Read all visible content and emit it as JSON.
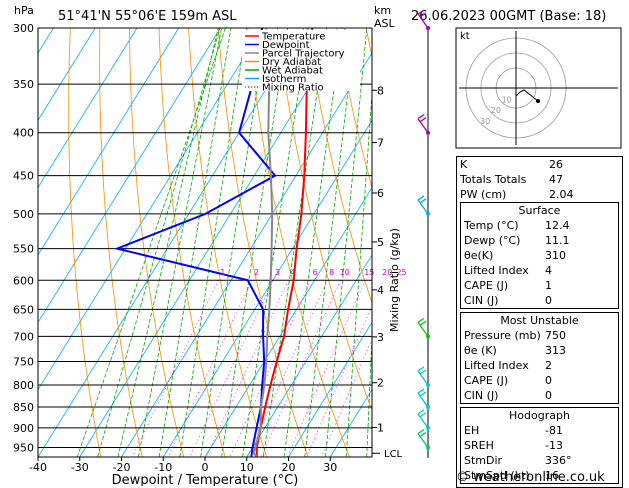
{
  "header": {
    "location": "51°41'N  55°06'E  159m  ASL",
    "datetime": "26.06.2023  00GMT  (Base: 18)",
    "hpa_label": "hPa",
    "km_label": "km",
    "asl_label": "ASL"
  },
  "legend": {
    "items": [
      {
        "label": "Temperature",
        "color": "#ff0000",
        "style": "solid"
      },
      {
        "label": "Dewpoint",
        "color": "#0000ff",
        "style": "solid"
      },
      {
        "label": "Parcel Trajectory",
        "color": "#888888",
        "style": "solid"
      },
      {
        "label": "Dry Adiabat",
        "color": "#ff8c00",
        "style": "solid"
      },
      {
        "label": "Wet Adiabat",
        "color": "#00aa00",
        "style": "solid"
      },
      {
        "label": "Isotherm",
        "color": "#00aaff",
        "style": "solid"
      },
      {
        "label": "Mixing Ratio",
        "color": "#ff00ff",
        "style": "dotted"
      }
    ]
  },
  "chart_data": {
    "type": "line",
    "title": "",
    "xlabel": "Dewpoint / Temperature (°C)",
    "ylabel": "hPa",
    "y2label": "Mixing Ratio (g/kg)",
    "xlim": [
      -40,
      40
    ],
    "x_ticks": [
      -40,
      -30,
      -20,
      -10,
      0,
      10,
      20,
      30
    ],
    "pressure_levels": [
      300,
      350,
      400,
      450,
      500,
      550,
      600,
      650,
      700,
      750,
      800,
      850,
      900,
      950
    ],
    "km_ticks": [
      {
        "label": "8",
        "p": 356
      },
      {
        "label": "7",
        "p": 411
      },
      {
        "label": "6",
        "p": 472
      },
      {
        "label": "5",
        "p": 540
      },
      {
        "label": "4",
        "p": 616
      },
      {
        "label": "3",
        "p": 701
      },
      {
        "label": "2",
        "p": 795
      },
      {
        "label": "1",
        "p": 899
      }
    ],
    "lcl_label": "LCL",
    "lcl_p": 965,
    "mixing_ratio_labels": [
      "1",
      "2",
      "3",
      "4",
      "6",
      "8",
      "10",
      "15",
      "20",
      "25"
    ],
    "mixing_ratio_label_p": 585,
    "series": [
      {
        "name": "Temperature",
        "color": "#ff0000",
        "points": [
          [
            12.4,
            975
          ],
          [
            11,
            950
          ],
          [
            9,
            900
          ],
          [
            7,
            850
          ],
          [
            5,
            800
          ],
          [
            3,
            750
          ],
          [
            1,
            700
          ],
          [
            -2,
            650
          ],
          [
            -5,
            600
          ],
          [
            -9,
            550
          ],
          [
            -13,
            500
          ],
          [
            -18,
            450
          ],
          [
            -24,
            400
          ],
          [
            -31,
            350
          ],
          [
            -38,
            300
          ]
        ]
      },
      {
        "name": "Dewpoint",
        "color": "#0000ff",
        "points": [
          [
            11.1,
            975
          ],
          [
            10,
            950
          ],
          [
            8,
            900
          ],
          [
            6,
            850
          ],
          [
            3,
            800
          ],
          [
            0,
            750
          ],
          [
            -4,
            700
          ],
          [
            -8,
            650
          ],
          [
            -16,
            600
          ],
          [
            -52,
            550
          ],
          [
            -36,
            500
          ],
          [
            -25,
            450
          ],
          [
            -40,
            400
          ],
          [
            -44,
            350
          ],
          [
            -50,
            300
          ]
        ]
      },
      {
        "name": "Parcel Trajectory",
        "color": "#888888",
        "points": [
          [
            12.4,
            975
          ],
          [
            11.1,
            965
          ],
          [
            9,
            900
          ],
          [
            6,
            850
          ],
          [
            3.5,
            800
          ],
          [
            0.5,
            750
          ],
          [
            -3,
            700
          ],
          [
            -6.5,
            650
          ],
          [
            -10.5,
            600
          ],
          [
            -15,
            550
          ],
          [
            -20,
            500
          ],
          [
            -26,
            450
          ],
          [
            -33,
            400
          ],
          [
            -40,
            350
          ]
        ]
      }
    ]
  },
  "wind_barbs": [
    {
      "p": 300,
      "color": "#aa00aa"
    },
    {
      "p": 400,
      "color": "#aa00aa"
    },
    {
      "p": 500,
      "color": "#00aaff"
    },
    {
      "p": 700,
      "color": "#00cc00"
    },
    {
      "p": 800,
      "color": "#00cccc"
    },
    {
      "p": 850,
      "color": "#00cccc"
    },
    {
      "p": 900,
      "color": "#00cccc"
    },
    {
      "p": 950,
      "color": "#00cc66"
    }
  ],
  "hodograph": {
    "unit_label": "kt",
    "ring_labels": [
      "10",
      "20",
      "30"
    ]
  },
  "indices": [
    {
      "label": "K",
      "value": "26"
    },
    {
      "label": "Totals Totals",
      "value": "47"
    },
    {
      "label": "PW (cm)",
      "value": "2.04"
    }
  ],
  "surface": {
    "title": "Surface",
    "rows": [
      {
        "label": "Temp (°C)",
        "value": "12.4"
      },
      {
        "label": "Dewp (°C)",
        "value": "11.1"
      },
      {
        "label": "θe(K)",
        "value": "310"
      },
      {
        "label": "Lifted Index",
        "value": "4"
      },
      {
        "label": "CAPE (J)",
        "value": "1"
      },
      {
        "label": "CIN (J)",
        "value": "0"
      }
    ]
  },
  "most_unstable": {
    "title": "Most Unstable",
    "rows": [
      {
        "label": "Pressure (mb)",
        "value": "750"
      },
      {
        "label": "θe (K)",
        "value": "313"
      },
      {
        "label": "Lifted Index",
        "value": "2"
      },
      {
        "label": "CAPE (J)",
        "value": "0"
      },
      {
        "label": "CIN (J)",
        "value": "0"
      }
    ]
  },
  "hodograph_table": {
    "title": "Hodograph",
    "rows": [
      {
        "label": "EH",
        "value": "-81"
      },
      {
        "label": "SREH",
        "value": "-13"
      },
      {
        "label": "StmDir",
        "value": "336°"
      },
      {
        "label": "StmSpd (kt)",
        "value": "16"
      }
    ]
  },
  "footer": "© weatheronline.co.uk"
}
